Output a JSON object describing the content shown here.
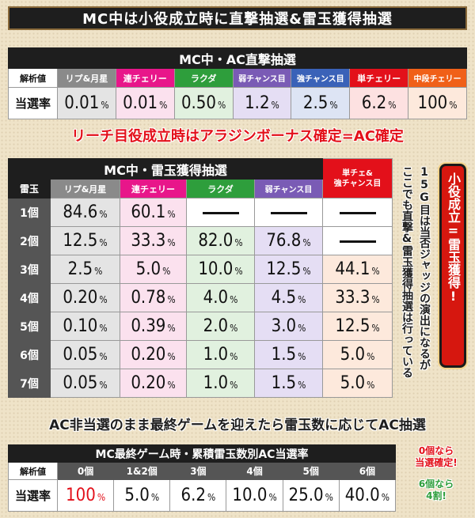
{
  "header": {
    "title": "MC中は小役成立時に直撃抽選&雷玉獲得抽選"
  },
  "direct_table": {
    "title": "MC中・AC直撃抽選",
    "row_label_header": "解析値",
    "row_label": "当選率",
    "columns": [
      {
        "label": "リプ&月星",
        "value": "0.01",
        "unit": "%"
      },
      {
        "label": "連チェリー",
        "value": "0.01",
        "unit": "%"
      },
      {
        "label": "ラクダ",
        "value": "0.50",
        "unit": "%"
      },
      {
        "label": "弱チャンス目",
        "value": "1.2",
        "unit": "%"
      },
      {
        "label": "強チャンス目",
        "value": "2.5",
        "unit": "%"
      },
      {
        "label": "単チェリー",
        "value": "6.2",
        "unit": "%"
      },
      {
        "label": "中段チェリー",
        "value": "100",
        "unit": "%"
      }
    ]
  },
  "reach_note": "リーチ目役成立時はアラジンボーナス確定=AC確定",
  "thunder_table": {
    "title": "MC中・雷玉獲得抽選",
    "row_header": "雷玉",
    "columns": [
      "リプ&月星",
      "連チェリー",
      "ラクダ",
      "弱チャンス目",
      "単チェ&\n強チャンス目"
    ],
    "rows": [
      {
        "label": "1個",
        "values": [
          "84.6",
          "60.1",
          "—",
          "—",
          "—"
        ]
      },
      {
        "label": "2個",
        "values": [
          "12.5",
          "33.3",
          "82.0",
          "76.8",
          "—"
        ]
      },
      {
        "label": "3個",
        "values": [
          "2.5",
          "5.0",
          "10.0",
          "12.5",
          "44.1"
        ]
      },
      {
        "label": "4個",
        "values": [
          "0.20",
          "0.78",
          "4.0",
          "4.5",
          "33.3"
        ]
      },
      {
        "label": "5個",
        "values": [
          "0.10",
          "0.39",
          "2.0",
          "3.0",
          "12.5"
        ]
      },
      {
        "label": "6個",
        "values": [
          "0.05",
          "0.20",
          "1.0",
          "1.5",
          "5.0"
        ]
      },
      {
        "label": "7個",
        "values": [
          "0.05",
          "0.20",
          "1.0",
          "1.5",
          "5.0"
        ]
      }
    ],
    "unit": "%"
  },
  "vertical_note_1": "15G目は当否ジャッジの演出になるが",
  "vertical_note_2": "ここでも直撃&雷玉獲得抽選は行っている",
  "side_banner": "小役成立=雷玉獲得!",
  "ac_note": "AC非当選のまま最終ゲームを迎えたら雷玉数に応じてAC抽選",
  "final_table": {
    "title": "MC最終ゲーム時・累積雷玉数別AC当選率",
    "row_label_header": "解析値",
    "row_label": "当選率",
    "columns": [
      {
        "label": "0個",
        "value": "100",
        "unit": "%"
      },
      {
        "label": "1&2個",
        "value": "5.0",
        "unit": "%"
      },
      {
        "label": "3個",
        "value": "6.2",
        "unit": "%"
      },
      {
        "label": "4個",
        "value": "10.0",
        "unit": "%"
      },
      {
        "label": "5個",
        "value": "25.0",
        "unit": "%"
      },
      {
        "label": "6個",
        "value": "40.0",
        "unit": "%"
      }
    ]
  },
  "side_notes": {
    "zero_line1": "0個なら",
    "zero_line2": "当選確定!",
    "six_line1": "6個なら",
    "six_line2": "4割!"
  },
  "colors": {
    "accent_red": "#e3101a",
    "pink": "#e8168a",
    "green": "#2e9e3c",
    "violet": "#7a5bb5",
    "blue": "#3a62b8",
    "orange": "#f06018"
  }
}
